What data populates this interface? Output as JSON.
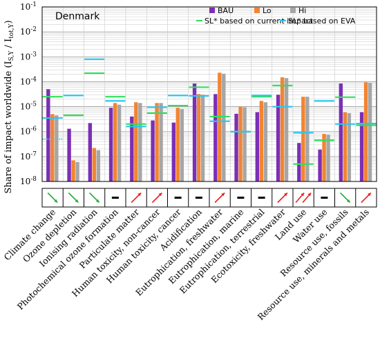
{
  "chart_data": {
    "type": "bar",
    "title": "Denmark",
    "ylabel": "Share of impact worldwide (I",
    "ylabel_sub1": "S,Y",
    "ylabel_mid": " / I",
    "ylabel_sub2": "tot,Y",
    "ylabel_end": ")",
    "yscale": "log",
    "ylim": [
      1e-08,
      0.1
    ],
    "yticks": [
      {
        "value": 1e-08,
        "base": "10",
        "exp": "-8"
      },
      {
        "value": 1e-07,
        "base": "10",
        "exp": "-7"
      },
      {
        "value": 1e-06,
        "base": "10",
        "exp": "-6"
      },
      {
        "value": 1e-05,
        "base": "10",
        "exp": "-5"
      },
      {
        "value": 0.0001,
        "base": "10",
        "exp": "-4"
      },
      {
        "value": 0.001,
        "base": "10",
        "exp": "-3"
      },
      {
        "value": 0.01,
        "base": "10",
        "exp": "-2"
      },
      {
        "value": 0.1,
        "base": "10",
        "exp": "-1"
      }
    ],
    "grid": true,
    "legend_position": "top-right",
    "categories": [
      "Climate change",
      "Ozone depletion",
      "Ionising radiation",
      "Photochemical ozone formation",
      "Particulate matter",
      "Human toxicity, non-cancer",
      "Human toxicity, cancer",
      "Acidification",
      "Eutrophication, freshwater",
      "Eutrophication, marine",
      "Eutrophication, terrestrial",
      "Ecotoxicity, freshwater",
      "Land use",
      "Water use",
      "Resource use, fossils",
      "Resource use, minerals and metals"
    ],
    "series": [
      {
        "name": "BAU",
        "color": "#7b2fb5",
        "values": [
          5e-05,
          1.3e-06,
          2.2e-06,
          9e-06,
          4e-06,
          2.8e-06,
          2.3e-06,
          8.5e-05,
          3.2e-05,
          5.2e-06,
          6e-06,
          3e-05,
          3.5e-07,
          1.9e-07,
          8.5e-05,
          6e-06
        ]
      },
      {
        "name": "Lo",
        "color": "#f28432",
        "values": [
          5e-06,
          7e-08,
          2.2e-07,
          1.4e-05,
          1.5e-05,
          1.4e-05,
          9e-06,
          3.2e-05,
          0.00023,
          1e-05,
          1.7e-05,
          0.00015,
          2.5e-05,
          8e-07,
          6e-06,
          9.5e-05
        ]
      },
      {
        "name": "Hi",
        "color": "#a6a6a6",
        "values": [
          4.5e-06,
          6e-08,
          1.8e-07,
          1.2e-05,
          1.4e-05,
          1.4e-05,
          8e-06,
          3e-05,
          0.00021,
          9.5e-06,
          1.5e-05,
          0.00014,
          2.5e-05,
          7.5e-07,
          5.5e-06,
          9e-05
        ]
      }
    ],
    "threshold_series": [
      {
        "name": "SL* based on current impact",
        "color": "#2fe05a",
        "values": [
          2.5e-05,
          4.5e-06,
          0.00022,
          2.5e-05,
          2e-06,
          5.5e-06,
          1.1e-05,
          6e-05,
          4e-06,
          1e-06,
          2.5e-05,
          7e-05,
          5e-08,
          4.5e-07,
          2.4e-05,
          1.8e-06
        ]
      },
      {
        "name": "SL* based on EVA",
        "color": "#29c8ee",
        "values": [
          3.5e-06,
          2.8e-05,
          0.0008,
          1.7e-05,
          1.6e-06,
          9.5e-06,
          2.8e-05,
          2.7e-05,
          2.6e-06,
          1e-06,
          2.8e-05,
          1e-05,
          9e-07,
          1.7e-05,
          2e-06,
          2.1e-06
        ]
      }
    ],
    "extra_marks": [
      {
        "category": "Climate change",
        "color": "#29c8ee",
        "value": 3.5e-06,
        "style": "solid"
      },
      {
        "category": "Climate change",
        "color": "#29c8ee",
        "value": 5e-07,
        "style": "dotted"
      }
    ],
    "trend_arrows": [
      "down-green",
      "down-green",
      "down-green",
      "flat",
      "up-red",
      "up-red",
      "flat",
      "flat",
      "up-red",
      "flat",
      "flat",
      "up-red",
      "double-up-red",
      "flat",
      "down-green",
      "up-red"
    ],
    "colors": {
      "up": "#e8201e",
      "down": "#2aab3a",
      "flat": "#000000"
    }
  }
}
